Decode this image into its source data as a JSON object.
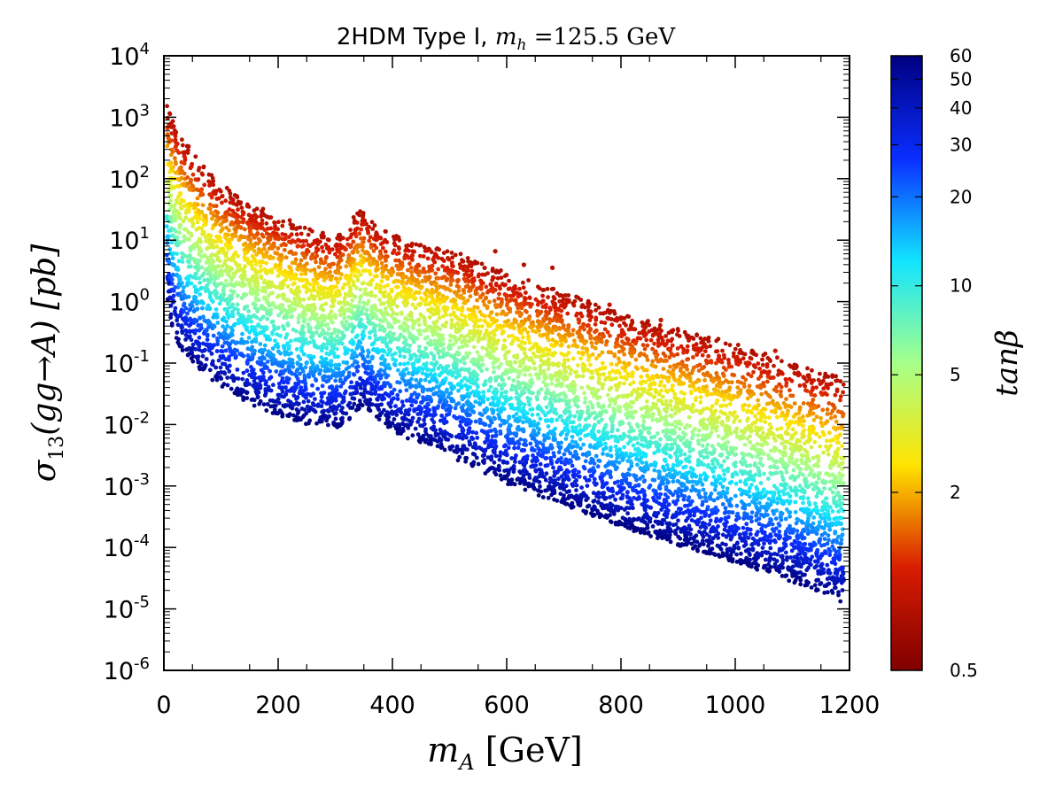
{
  "chart_data": {
    "type": "scatter",
    "title_prefix": "2HDM Type I, ",
    "title_math_var": "m",
    "title_math_sub": "h",
    "title_math_rest": " =125.5 GeV",
    "xlabel_var": "m",
    "xlabel_sub": "A",
    "xlabel_unit": " [GeV]",
    "ylabel_var": "σ",
    "ylabel_sub": "13",
    "ylabel_rest": "(gg→A) [pb]",
    "xlim": [
      0,
      1200
    ],
    "ylim_log10": [
      -6,
      4
    ],
    "x_ticks": [
      0,
      200,
      400,
      600,
      800,
      1000,
      1200
    ],
    "x_tick_labels": [
      "0",
      "200",
      "400",
      "600",
      "800",
      "1000",
      "1200"
    ],
    "y_tick_exponents": [
      -6,
      -5,
      -4,
      -3,
      -2,
      -1,
      0,
      1,
      2,
      3,
      4
    ],
    "y_tick_base": "10",
    "y_tick_sup": [
      "-6",
      "-5",
      "-4",
      "-3",
      "-2",
      "-1",
      "0",
      "1",
      "2",
      "3",
      "4"
    ],
    "colorbar": {
      "label": "tanβ",
      "scale": "log",
      "range": [
        0.5,
        60
      ],
      "ticks": [
        0.5,
        2,
        5,
        10,
        20,
        30,
        40,
        50,
        60
      ],
      "tick_labels": [
        "0.5",
        "2",
        "5",
        "10",
        "20",
        "30",
        "40",
        "50",
        "60"
      ],
      "colormap": [
        "#7f0000",
        "#d81c00",
        "#ffe300",
        "#a6ff8a",
        "#12e4ff",
        "#0a2dff",
        "#00007f"
      ]
    },
    "upper_envelope_log10": {
      "description": "log10 sigma of lowest tanβ points (approx. upper edge) vs m_A",
      "x": [
        5,
        10,
        30,
        60,
        100,
        150,
        200,
        250,
        300,
        320,
        345,
        370,
        400,
        500,
        600,
        700,
        800,
        900,
        1000,
        1100,
        1190
      ],
      "y": [
        3.2,
        3.1,
        2.7,
        2.3,
        1.9,
        1.6,
        1.4,
        1.2,
        1.05,
        1.25,
        1.5,
        1.25,
        1.1,
        0.85,
        0.45,
        0.15,
        -0.2,
        -0.45,
        -0.7,
        -1.0,
        -1.25
      ]
    },
    "lower_envelope_log10": {
      "description": "log10 sigma of highest tanβ points (approx. lower edge) vs m_A",
      "x": [
        5,
        10,
        30,
        60,
        100,
        150,
        200,
        250,
        300,
        320,
        345,
        370,
        400,
        500,
        600,
        700,
        800,
        900,
        1000,
        1100,
        1190
      ],
      "y": [
        0.2,
        -0.3,
        -0.8,
        -1.1,
        -1.4,
        -1.65,
        -1.85,
        -2.0,
        -2.05,
        -2.0,
        -1.7,
        -1.9,
        -2.1,
        -2.5,
        -2.95,
        -3.3,
        -3.65,
        -3.95,
        -4.25,
        -4.55,
        -4.9
      ]
    },
    "sample_points": [
      {
        "x": 580,
        "y": 0.82,
        "tanb": 0.8
      },
      {
        "x": 630,
        "y": 0.6,
        "tanb": 0.8
      },
      {
        "x": 680,
        "y": 0.55,
        "tanb": 0.8
      },
      {
        "x": 780,
        "y": -0.05,
        "tanb": 0.9
      },
      {
        "x": 870,
        "y": -0.3,
        "tanb": 0.9
      },
      {
        "x": 1070,
        "y": -0.8,
        "tanb": 1.0
      }
    ]
  }
}
